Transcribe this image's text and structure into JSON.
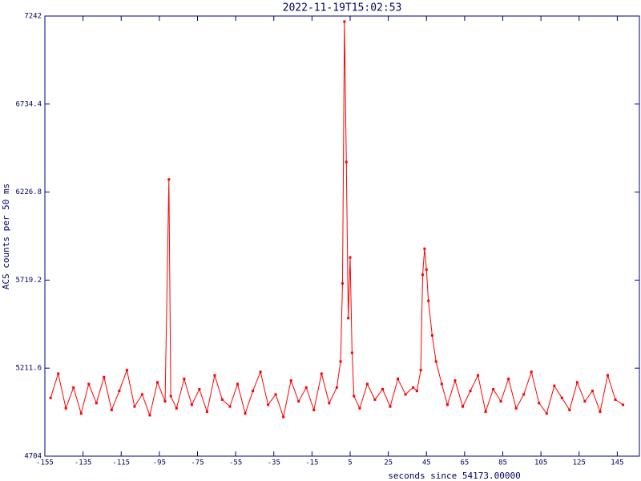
{
  "chart_data": {
    "type": "line",
    "title": "2022-11-19T15:02:53",
    "x_label": "seconds since 54173.00000",
    "y_label": "ACS counts per 50 ms",
    "x": [
      -152,
      -148,
      -144,
      -140,
      -136,
      -132,
      -128,
      -124,
      -120,
      -116,
      -112,
      -108,
      -104,
      -100,
      -96,
      -92,
      -90,
      -89,
      -86,
      -82,
      -78,
      -74,
      -70,
      -66,
      -62,
      -58,
      -54,
      -50,
      -46,
      -42,
      -38,
      -34,
      -30,
      -26,
      -22,
      -18,
      -14,
      -10,
      -6,
      -2,
      0,
      1,
      2,
      3,
      4,
      5,
      6,
      7,
      10,
      14,
      18,
      22,
      26,
      30,
      34,
      38,
      40,
      42,
      43,
      44,
      45,
      46,
      48,
      50,
      53,
      56,
      60,
      64,
      68,
      72,
      76,
      80,
      84,
      88,
      92,
      96,
      100,
      104,
      108,
      112,
      116,
      120,
      124,
      128,
      132,
      136,
      140,
      144,
      148
    ],
    "series": [
      {
        "name": "ACS counts",
        "color": "#ff0000",
        "values": [
          5040,
          5180,
          4980,
          5100,
          4950,
          5120,
          5010,
          5160,
          4970,
          5080,
          5200,
          4990,
          5060,
          4940,
          5130,
          5020,
          6300,
          5050,
          4980,
          5150,
          5000,
          5090,
          4960,
          5170,
          5030,
          4990,
          5120,
          4950,
          5080,
          5190,
          5000,
          5060,
          4930,
          5140,
          5020,
          5100,
          4970,
          5180,
          5010,
          5100,
          5250,
          5700,
          7210,
          6400,
          5500,
          5850,
          5300,
          5050,
          4980,
          5120,
          5030,
          5090,
          4990,
          5150,
          5060,
          5100,
          5080,
          5200,
          5750,
          5900,
          5780,
          5600,
          5400,
          5250,
          5120,
          5000,
          5140,
          4990,
          5080,
          5170,
          4960,
          5090,
          5020,
          5150,
          4980,
          5060,
          5190,
          5010,
          4950,
          5110,
          5040,
          4970,
          5130,
          5020,
          5080,
          4960,
          5170,
          5030,
          5000
        ]
      }
    ],
    "xlim": [
      -155,
      156.6
    ],
    "ylim": [
      4704,
      7242
    ],
    "xticks": [
      -155,
      -135,
      -115,
      -95,
      -75,
      -55,
      -35,
      -15,
      5,
      25,
      45,
      65,
      85,
      105,
      125,
      145
    ],
    "yticks": [
      4704,
      5211.6,
      5719.2,
      6226.8,
      6734.4,
      7242
    ],
    "frame_color": "#000080"
  }
}
